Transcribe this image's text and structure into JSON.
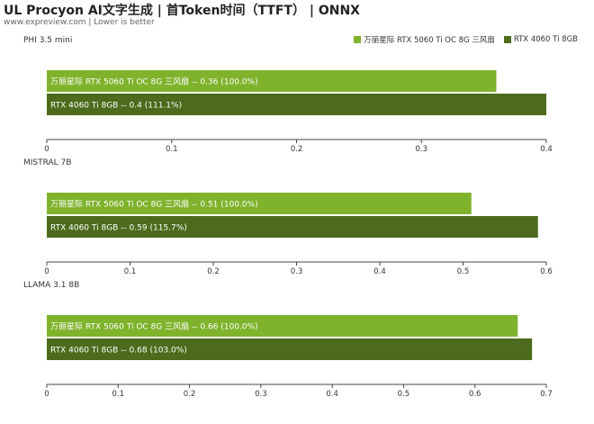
{
  "title": "UL Procyon AI文字生成 | 首Token时间（TTFT） | ONNX",
  "subtitle": "www.expreview.com | Lower is better",
  "colors": {
    "series_1": "#7fb32c",
    "series_2": "#4c6b1c"
  },
  "legend": [
    {
      "label": "万丽星际 RTX 5060 Ti OC 8G 三风扇",
      "color": "#7fb32c"
    },
    {
      "label": "RTX 4060 Ti 8GB",
      "color": "#4c6b1c"
    }
  ],
  "chart_data": [
    {
      "type": "bar",
      "orientation": "horizontal",
      "title": "PHI 3.5 mini",
      "categories": [
        "万丽星际 RTX 5060 Ti OC 8G 三风扇",
        "RTX 4060 Ti 8GB"
      ],
      "values": [
        0.36,
        0.4
      ],
      "data_labels": [
        "万丽星际 RTX 5060 Ti OC 8G 三风扇  --  0.36 (100.0%)",
        "RTX 4060 Ti 8GB  --  0.4 (111.1%)"
      ],
      "xlim": [
        0,
        0.4
      ],
      "ticks": [
        "0",
        "0.1",
        "0.2",
        "0.3",
        "0.4"
      ],
      "grid": false
    },
    {
      "type": "bar",
      "orientation": "horizontal",
      "title": "MISTRAL 7B",
      "categories": [
        "万丽星际 RTX 5060 Ti OC 8G 三风扇",
        "RTX 4060 Ti 8GB"
      ],
      "values": [
        0.51,
        0.59
      ],
      "data_labels": [
        "万丽星际 RTX 5060 Ti OC 8G 三风扇  --  0.51 (100.0%)",
        "RTX 4060 Ti 8GB  --  0.59 (115.7%)"
      ],
      "xlim": [
        0,
        0.6
      ],
      "ticks": [
        "0",
        "0.1",
        "0.2",
        "0.3",
        "0.4",
        "0.5",
        "0.6"
      ],
      "grid": false
    },
    {
      "type": "bar",
      "orientation": "horizontal",
      "title": "LLAMA 3.1 8B",
      "categories": [
        "万丽星际 RTX 5060 Ti OC 8G 三风扇",
        "RTX 4060 Ti 8GB"
      ],
      "values": [
        0.66,
        0.68
      ],
      "data_labels": [
        "万丽星际 RTX 5060 Ti OC 8G 三风扇  --  0.66 (100.0%)",
        "RTX 4060 Ti 8GB  --  0.68 (103.0%)"
      ],
      "xlim": [
        0,
        0.7
      ],
      "ticks": [
        "0",
        "0.1",
        "0.2",
        "0.3",
        "0.4",
        "0.5",
        "0.6",
        "0.7"
      ],
      "grid": false
    }
  ]
}
